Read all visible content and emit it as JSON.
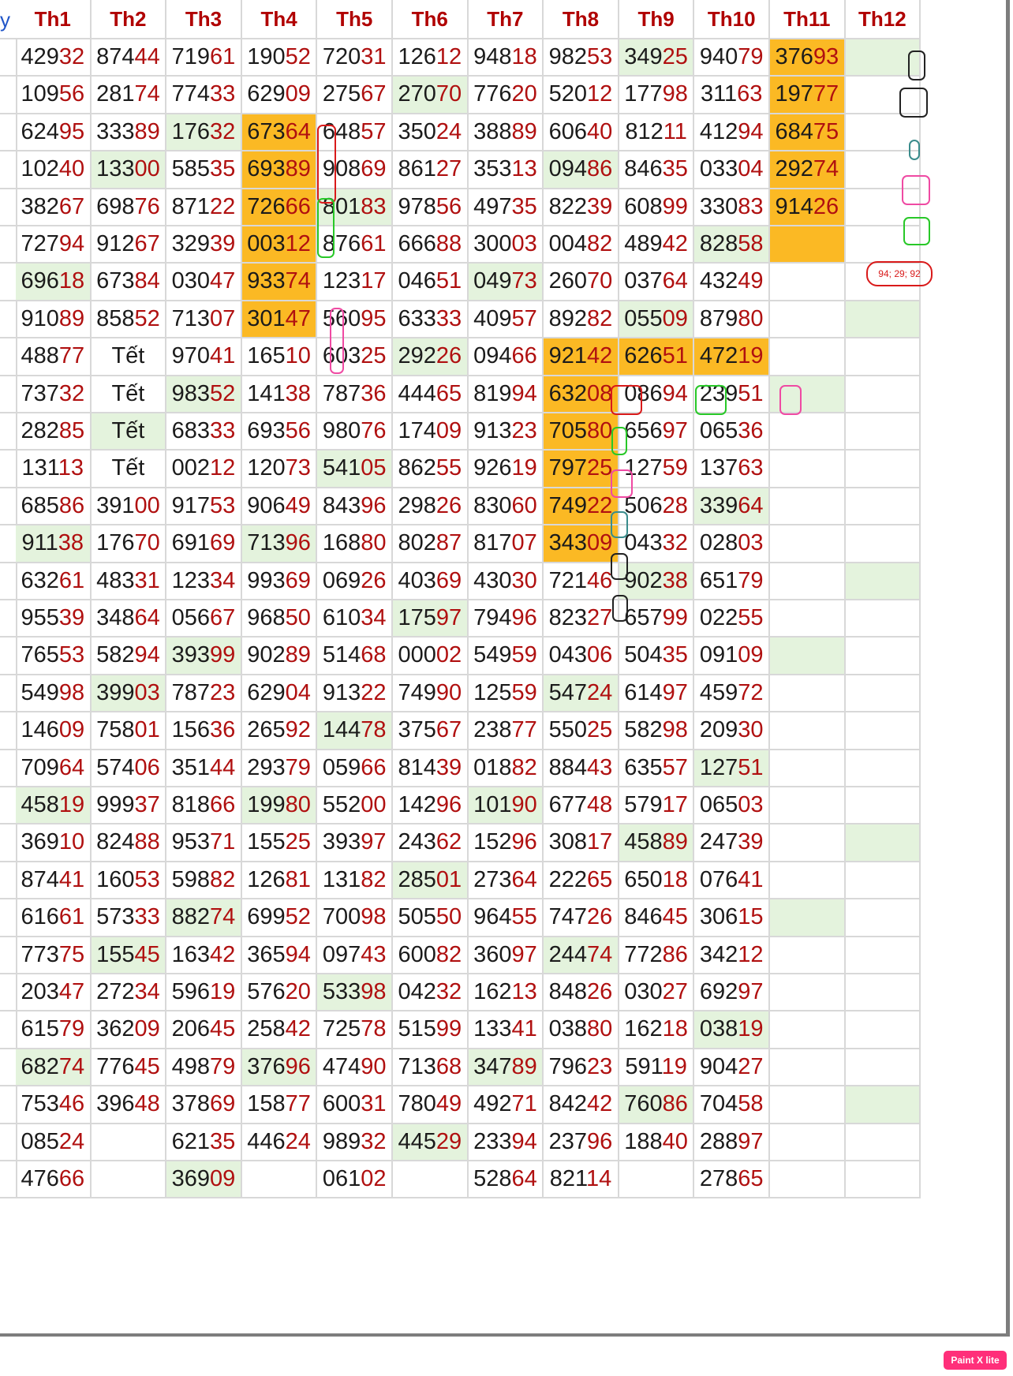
{
  "table": {
    "stub_header": "y",
    "headers": [
      "Th1",
      "Th2",
      "Th3",
      "Th4",
      "Th5",
      "Th6",
      "Th7",
      "Th8",
      "Th9",
      "Th10",
      "Th11",
      "Th12"
    ],
    "rows": [
      [
        "42932",
        "87444",
        "71961",
        "19052",
        "72031",
        "12612",
        "94818",
        "98253",
        "34925",
        "94079",
        "37693",
        ""
      ],
      [
        "10956",
        "28174",
        "77433",
        "62909",
        "27567",
        "27070",
        "77620",
        "52012",
        "17798",
        "31163",
        "19777",
        ""
      ],
      [
        "62495",
        "33389",
        "17632",
        "67364",
        "64857",
        "35024",
        "38889",
        "60640",
        "81211",
        "41294",
        "68475",
        ""
      ],
      [
        "10240",
        "13300",
        "58535",
        "69389",
        "90869",
        "86127",
        "35313",
        "09486",
        "84635",
        "03304",
        "29274",
        ""
      ],
      [
        "38267",
        "69876",
        "87122",
        "72666",
        "80183",
        "97856",
        "49735",
        "82239",
        "60899",
        "33083",
        "91426",
        ""
      ],
      [
        "72794",
        "91267",
        "32939",
        "00312",
        "87661",
        "66688",
        "30003",
        "00482",
        "48942",
        "82858",
        "",
        ""
      ],
      [
        "69618",
        "67384",
        "03047",
        "93374",
        "12317",
        "04651",
        "04973",
        "26070",
        "03764",
        "43249",
        "",
        ""
      ],
      [
        "91089",
        "85852",
        "71307",
        "30147",
        "56095",
        "63333",
        "40957",
        "89282",
        "05509",
        "87980",
        "",
        ""
      ],
      [
        "48877",
        "Tết",
        "97041",
        "16510",
        "60325",
        "29226",
        "09466",
        "92142",
        "62651",
        "47219",
        "",
        ""
      ],
      [
        "73732",
        "Tết",
        "98352",
        "14138",
        "78736",
        "44465",
        "81994",
        "63208",
        "08694",
        "23951",
        "",
        ""
      ],
      [
        "28285",
        "Tết",
        "68333",
        "69356",
        "98076",
        "17409",
        "91323",
        "70580",
        "65697",
        "06536",
        "",
        ""
      ],
      [
        "13113",
        "Tết",
        "00212",
        "12073",
        "54105",
        "86255",
        "92619",
        "79725",
        "12759",
        "13763",
        "",
        ""
      ],
      [
        "68586",
        "39100",
        "91753",
        "90649",
        "84396",
        "29826",
        "83060",
        "74922",
        "50628",
        "33964",
        "",
        ""
      ],
      [
        "91138",
        "17670",
        "69169",
        "71396",
        "16880",
        "80287",
        "81707",
        "34309",
        "04332",
        "02803",
        "",
        ""
      ],
      [
        "63261",
        "48331",
        "12334",
        "99369",
        "06926",
        "40369",
        "43030",
        "72146",
        "90238",
        "65179",
        "",
        ""
      ],
      [
        "95539",
        "34864",
        "05667",
        "96850",
        "61034",
        "17597",
        "79496",
        "82327",
        "65799",
        "02255",
        "",
        ""
      ],
      [
        "76553",
        "58294",
        "39399",
        "90289",
        "51468",
        "00002",
        "54959",
        "04306",
        "50435",
        "09109",
        "",
        ""
      ],
      [
        "54998",
        "39903",
        "78723",
        "62904",
        "91322",
        "74990",
        "12559",
        "54724",
        "61497",
        "45972",
        "",
        ""
      ],
      [
        "14609",
        "75801",
        "15636",
        "26592",
        "14478",
        "37567",
        "23877",
        "55025",
        "58298",
        "20930",
        "",
        ""
      ],
      [
        "70964",
        "57406",
        "35144",
        "29379",
        "05966",
        "81439",
        "01882",
        "88443",
        "63557",
        "12751",
        "",
        ""
      ],
      [
        "45819",
        "99937",
        "81866",
        "19980",
        "55200",
        "14296",
        "10190",
        "67748",
        "57917",
        "06503",
        "",
        ""
      ],
      [
        "36910",
        "82488",
        "95371",
        "15525",
        "39397",
        "24362",
        "15296",
        "30817",
        "45889",
        "24739",
        "",
        ""
      ],
      [
        "87441",
        "16053",
        "59882",
        "12681",
        "13182",
        "28501",
        "27364",
        "22265",
        "65018",
        "07641",
        "",
        ""
      ],
      [
        "61661",
        "57333",
        "88274",
        "69952",
        "70098",
        "50550",
        "96455",
        "74726",
        "84645",
        "30615",
        "",
        ""
      ],
      [
        "77375",
        "15545",
        "16342",
        "36594",
        "09743",
        "60082",
        "36097",
        "24474",
        "77286",
        "34212",
        "",
        ""
      ],
      [
        "20347",
        "27234",
        "59619",
        "57620",
        "53398",
        "04232",
        "16213",
        "84826",
        "03027",
        "69297",
        "",
        ""
      ],
      [
        "61579",
        "36209",
        "20645",
        "25842",
        "72578",
        "51599",
        "13341",
        "03880",
        "16218",
        "03819",
        "",
        ""
      ],
      [
        "68274",
        "77645",
        "49879",
        "37696",
        "47490",
        "71368",
        "34789",
        "79623",
        "59119",
        "90427",
        "",
        ""
      ],
      [
        "75346",
        "39648",
        "37869",
        "15877",
        "60031",
        "78049",
        "49271",
        "84242",
        "76086",
        "70458",
        "",
        ""
      ],
      [
        "08524",
        "",
        "62135",
        "44624",
        "98932",
        "44529",
        "23394",
        "23796",
        "18840",
        "28897",
        "",
        ""
      ],
      [
        "47666",
        "",
        "36909",
        "",
        "06102",
        "",
        "52864",
        "82114",
        "",
        "27865",
        "",
        ""
      ]
    ],
    "green_cells": [
      [
        0,
        8
      ],
      [
        0,
        11
      ],
      [
        1,
        5
      ],
      [
        2,
        2
      ],
      [
        3,
        1
      ],
      [
        3,
        7
      ],
      [
        4,
        4
      ],
      [
        5,
        9
      ],
      [
        6,
        0
      ],
      [
        6,
        6
      ],
      [
        7,
        8
      ],
      [
        7,
        11
      ],
      [
        8,
        5
      ],
      [
        9,
        2
      ],
      [
        9,
        10
      ],
      [
        10,
        1
      ],
      [
        11,
        4
      ],
      [
        12,
        9
      ],
      [
        13,
        0
      ],
      [
        13,
        3
      ],
      [
        14,
        8
      ],
      [
        14,
        11
      ],
      [
        15,
        5
      ],
      [
        16,
        2
      ],
      [
        16,
        10
      ],
      [
        17,
        1
      ],
      [
        17,
        7
      ],
      [
        18,
        4
      ],
      [
        19,
        9
      ],
      [
        20,
        0
      ],
      [
        20,
        3
      ],
      [
        20,
        6
      ],
      [
        21,
        8
      ],
      [
        21,
        11
      ],
      [
        22,
        5
      ],
      [
        23,
        2
      ],
      [
        23,
        10
      ],
      [
        24,
        1
      ],
      [
        24,
        7
      ],
      [
        25,
        4
      ],
      [
        26,
        9
      ],
      [
        27,
        0
      ],
      [
        27,
        3
      ],
      [
        27,
        6
      ],
      [
        28,
        8
      ],
      [
        28,
        11
      ],
      [
        29,
        5
      ],
      [
        30,
        2
      ]
    ],
    "orange_cells": [
      [
        0,
        10
      ],
      [
        1,
        10
      ],
      [
        2,
        3
      ],
      [
        2,
        10
      ],
      [
        3,
        3
      ],
      [
        3,
        10
      ],
      [
        4,
        3
      ],
      [
        4,
        10
      ],
      [
        5,
        3
      ],
      [
        5,
        10
      ],
      [
        6,
        3
      ],
      [
        7,
        3
      ],
      [
        8,
        7
      ],
      [
        8,
        8
      ],
      [
        8,
        9
      ],
      [
        9,
        7
      ],
      [
        10,
        7
      ],
      [
        11,
        7
      ],
      [
        12,
        7
      ],
      [
        13,
        7
      ]
    ],
    "note_text": "94; 29; 92"
  },
  "colors": {
    "header_text": "#b00000",
    "tail_digits": "#b01010",
    "green_fill": "#e4f3dd",
    "orange_fill": "#fbb924"
  },
  "footer": {
    "bottom_text": "",
    "badge": "Paint X lite"
  }
}
